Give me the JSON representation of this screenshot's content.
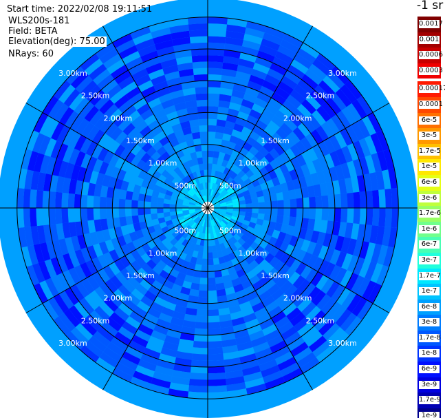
{
  "meta": {
    "start_time": "Start time: 2022/02/08 19:11:51",
    "site": "WLS200s-181",
    "field": "Field: BETA",
    "elevation": "Elevation(deg): 75.00",
    "nrays": "NRays: 60"
  },
  "colorbar": {
    "title": "-1 sr",
    "top_group": [
      {
        "label": "0.0017",
        "color": "#800000"
      },
      {
        "label": "0.001",
        "color": "#a30000"
      },
      {
        "label": "0.0006",
        "color": "#c80000"
      },
      {
        "label": "0.0003",
        "color": "#f00000"
      }
    ],
    "main_group": [
      {
        "label": "0.00017",
        "color": "#ff1a00"
      },
      {
        "label": "0.0001",
        "color": "#ff4800"
      },
      {
        "label": "6e-5",
        "color": "#ff7000"
      },
      {
        "label": "3e-5",
        "color": "#ff9800"
      },
      {
        "label": "1.7e-5",
        "color": "#ffc000"
      },
      {
        "label": "1e-5",
        "color": "#ffe800"
      },
      {
        "label": "6e-6",
        "color": "#e6ff14"
      },
      {
        "label": "3e-6",
        "color": "#c0ff3c"
      },
      {
        "label": "1.7e-6",
        "color": "#98ff64"
      },
      {
        "label": "1e-6",
        "color": "#70ff8c"
      },
      {
        "label": "6e-7",
        "color": "#48ffb4"
      },
      {
        "label": "3e-7",
        "color": "#20ffdc"
      },
      {
        "label": "1.7e-7",
        "color": "#00e8ff"
      },
      {
        "label": "1e-7",
        "color": "#00c4ff"
      },
      {
        "label": "6e-8",
        "color": "#00a0ff"
      },
      {
        "label": "3e-8",
        "color": "#007cff"
      },
      {
        "label": "1.7e-8",
        "color": "#0058ff"
      },
      {
        "label": "1e-8",
        "color": "#0034ff"
      },
      {
        "label": "6e-9",
        "color": "#0010ff"
      },
      {
        "label": "3e-9",
        "color": "#0000e0"
      },
      {
        "label": "1.7e-9",
        "color": "#0000b4"
      },
      {
        "label": "1e-9",
        "color": "#00008c"
      }
    ]
  },
  "chart_data": {
    "type": "heatmap",
    "projection": "polar PPI",
    "nrays": 60,
    "field": "BETA",
    "range_rings_km": [
      0.5,
      1.0,
      1.5,
      2.0,
      2.5,
      3.0
    ],
    "range_ring_labels": [
      "500m",
      "1.00km",
      "1.50km",
      "2.00km",
      "2.50km",
      "3.00km"
    ],
    "max_range_km": 3.3,
    "spokes_deg": [
      0,
      30,
      60,
      90,
      120,
      150,
      180,
      210,
      240,
      270,
      300,
      330
    ],
    "dominant_values_by_range": [
      {
        "range_km": [
          0.0,
          0.1
        ],
        "value": "no data"
      },
      {
        "range_km": [
          0.1,
          0.5
        ],
        "value": "1.7e-7 to 1e-7"
      },
      {
        "range_km": [
          0.5,
          1.0
        ],
        "value": "6e-8 to 3e-8"
      },
      {
        "range_km": [
          1.0,
          2.0
        ],
        "value": "3e-8 to 1.7e-8"
      },
      {
        "range_km": [
          2.0,
          3.0
        ],
        "value": "1.7e-8 to 6e-9"
      },
      {
        "range_km": [
          3.0,
          3.3
        ],
        "value": "6e-8"
      }
    ]
  }
}
